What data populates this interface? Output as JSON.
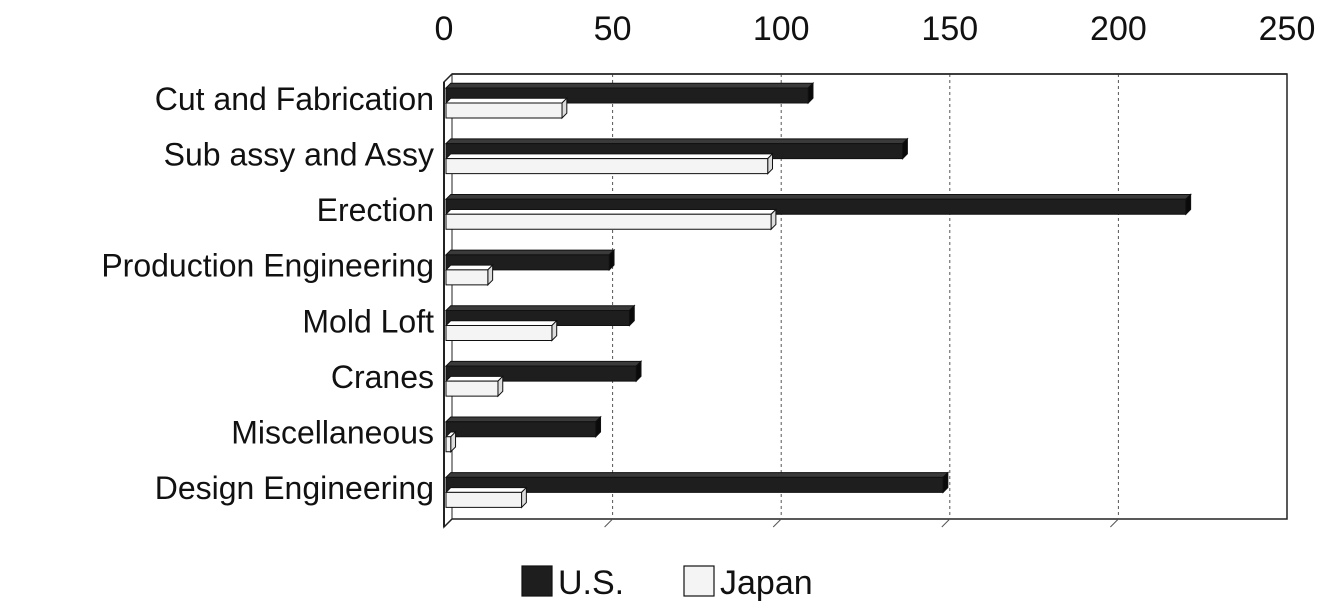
{
  "chart_data": {
    "type": "bar",
    "orientation": "horizontal",
    "title": "",
    "xlabel": "",
    "ylabel": "",
    "xlim": [
      0,
      250
    ],
    "xticks": [
      0,
      50,
      100,
      150,
      200,
      250
    ],
    "xtick_labels": [
      "0",
      "50",
      "100",
      "150",
      "200",
      "250"
    ],
    "x_axis_position": "top",
    "grid": "vertical-dashed",
    "categories": [
      "Cut and Fabrication",
      "Sub assy and Assy",
      "Erection",
      "Production Engineering",
      "Mold Loft",
      "Cranes",
      "Miscellaneous",
      "Design Engineering"
    ],
    "series": [
      {
        "name": "U.S.",
        "values": [
          108,
          136,
          220,
          49,
          55,
          57,
          45,
          148
        ]
      },
      {
        "name": "Japan",
        "values": [
          35,
          96,
          97,
          13,
          32,
          16,
          2,
          23
        ]
      }
    ],
    "legend_position": "bottom-center"
  },
  "colors": {
    "us_bar": "#1e1e1e",
    "japan_bar": "#f4f4f4",
    "axis": "#222222",
    "grid": "#555555"
  }
}
